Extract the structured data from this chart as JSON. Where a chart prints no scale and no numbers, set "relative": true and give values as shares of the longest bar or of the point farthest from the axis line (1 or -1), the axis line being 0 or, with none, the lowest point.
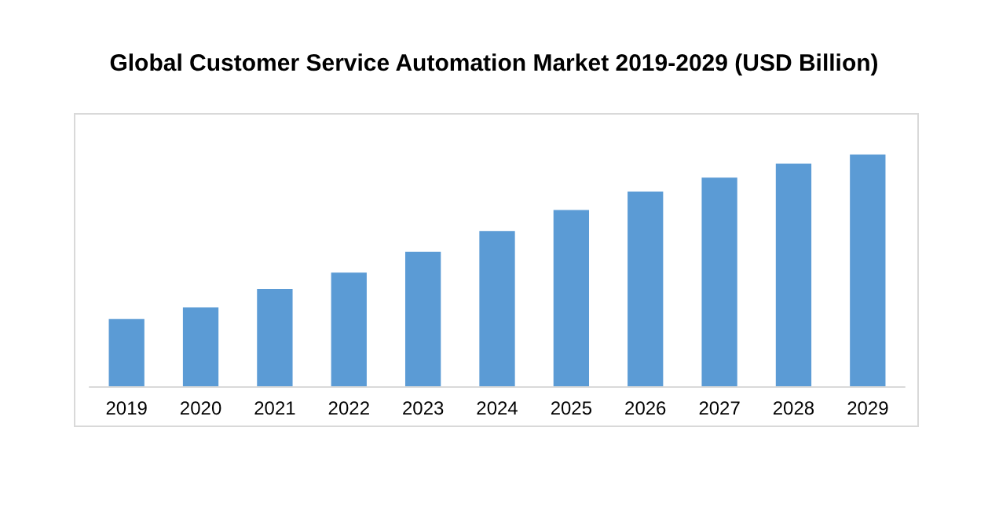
{
  "chart_data": {
    "type": "bar",
    "title": "Global Customer Service Automation Market 2019-2029 (USD Billion)",
    "categories": [
      "2019",
      "2020",
      "2021",
      "2022",
      "2023",
      "2024",
      "2025",
      "2026",
      "2027",
      "2028",
      "2029"
    ],
    "values": [
      0.29,
      0.34,
      0.42,
      0.49,
      0.58,
      0.67,
      0.76,
      0.84,
      0.9,
      0.96,
      1
    ],
    "color": "#5b9bd5",
    "relative": true
  }
}
